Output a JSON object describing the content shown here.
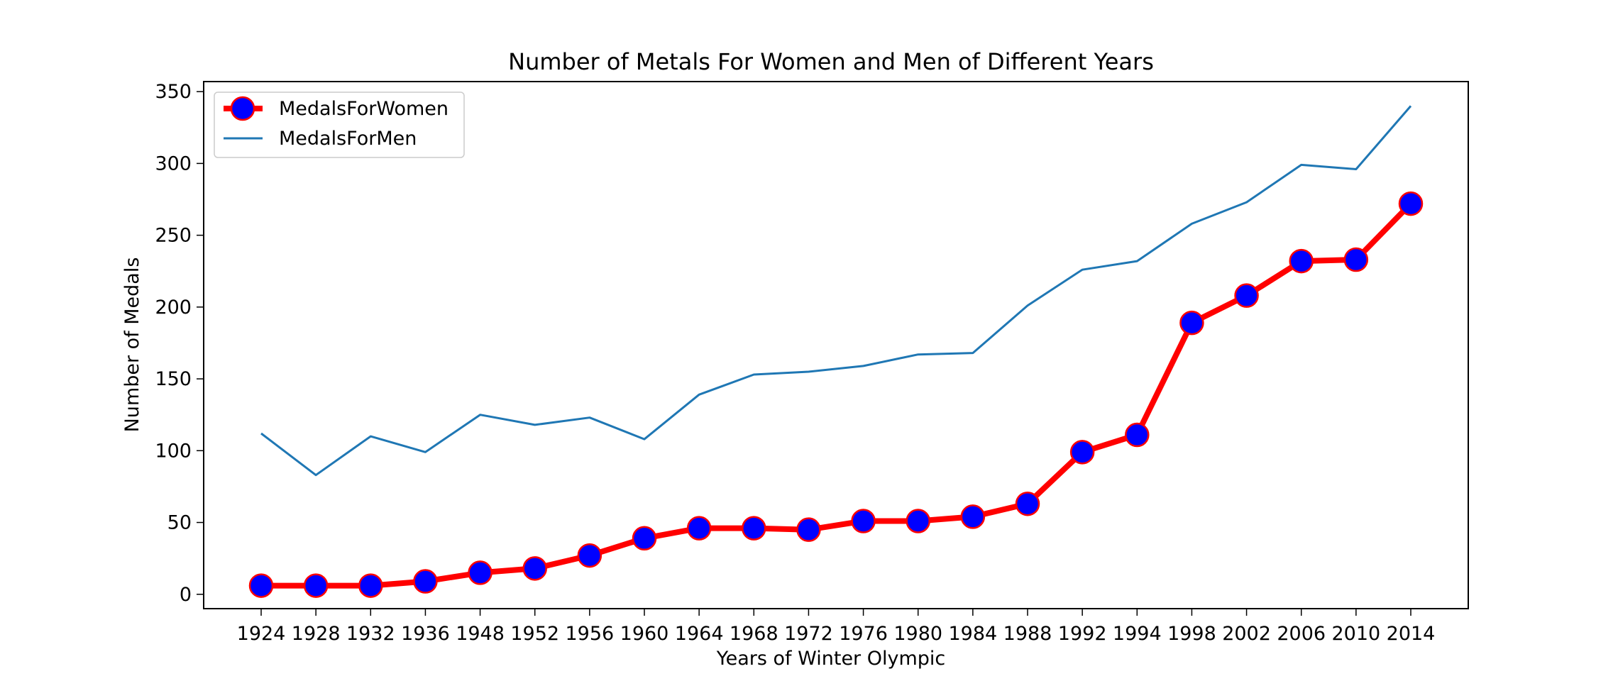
{
  "chart_data": {
    "type": "line",
    "title": "Number of Metals For Women and Men of Different Years",
    "xlabel": "Years of Winter Olympic",
    "ylabel": "Number of Medals",
    "categories": [
      "1924",
      "1928",
      "1932",
      "1936",
      "1948",
      "1952",
      "1956",
      "1960",
      "1964",
      "1968",
      "1972",
      "1976",
      "1980",
      "1984",
      "1988",
      "1992",
      "1994",
      "1998",
      "2002",
      "2006",
      "2010",
      "2014"
    ],
    "ylim": [
      -10,
      357
    ],
    "yticks": [
      0,
      50,
      100,
      150,
      200,
      250,
      300,
      350
    ],
    "grid": false,
    "legend_position": "top-left",
    "series": [
      {
        "name": "MedalsForWomen",
        "color": "#ff0000",
        "marker_fill": "#0000ff",
        "values": [
          6,
          6,
          6,
          9,
          15,
          18,
          27,
          39,
          46,
          46,
          45,
          51,
          51,
          54,
          63,
          99,
          111,
          189,
          208,
          232,
          233,
          272
        ]
      },
      {
        "name": "MedalsForMen",
        "color": "#1f77b4",
        "values": [
          112,
          83,
          110,
          99,
          125,
          118,
          123,
          108,
          139,
          153,
          155,
          159,
          167,
          168,
          201,
          226,
          232,
          258,
          273,
          299,
          296,
          340
        ]
      }
    ]
  }
}
